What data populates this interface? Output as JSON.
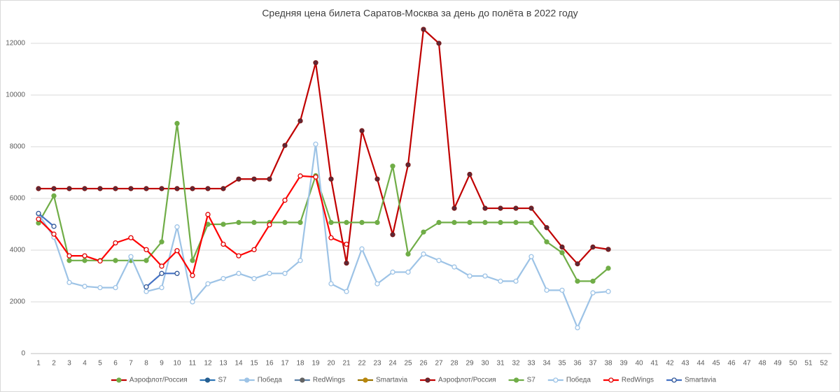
{
  "chart_data": {
    "type": "line",
    "title": "Средняя цена билета Саратов-Москва за день до полёта в 2022 году",
    "categories": [
      "1",
      "2",
      "3",
      "4",
      "5",
      "6",
      "7",
      "8",
      "9",
      "10",
      "11",
      "12",
      "13",
      "14",
      "15",
      "16",
      "17",
      "18",
      "19",
      "20",
      "21",
      "22",
      "23",
      "24",
      "25",
      "26",
      "27",
      "28",
      "29",
      "30",
      "31",
      "32",
      "33",
      "34",
      "35",
      "36",
      "37",
      "38",
      "39",
      "40",
      "41",
      "42",
      "43",
      "44",
      "45",
      "46",
      "47",
      "48",
      "49",
      "50",
      "51",
      "52"
    ],
    "ylim": [
      0,
      12540
    ],
    "yticks": [
      0,
      2000,
      4000,
      6000,
      8000,
      10000,
      12000
    ],
    "grid": true,
    "legend": "bottom",
    "series": [
      {
        "name": "Аэрофлот/Россия",
        "color": "#c00000",
        "marker_color": "#70ad47",
        "marker_fill": "#70ad47",
        "values": [
          null,
          null,
          null,
          null,
          null,
          null,
          null,
          null,
          null,
          null,
          null,
          null,
          null,
          null,
          null,
          null,
          null,
          null,
          null,
          null,
          null,
          null,
          null,
          null,
          null,
          null,
          null,
          null,
          null,
          null,
          null,
          null,
          null,
          null,
          null,
          null,
          null,
          null,
          null,
          null,
          null,
          null,
          null,
          null,
          null,
          null,
          null,
          null,
          null,
          null,
          null,
          null
        ]
      },
      {
        "name": "S7",
        "color": "#2e75b6",
        "marker_color": "#255e91",
        "marker_fill": "#255e91",
        "values": [
          null,
          null,
          null,
          null,
          null,
          null,
          null,
          null,
          null,
          null,
          null,
          null,
          null,
          null,
          null,
          null,
          null,
          null,
          null,
          null,
          null,
          null,
          null,
          null,
          null,
          null,
          null,
          null,
          null,
          null,
          null,
          null,
          null,
          null,
          null,
          null,
          null,
          null,
          null,
          null,
          null,
          null,
          null,
          null,
          null,
          null,
          null,
          null,
          null,
          null,
          null,
          null
        ]
      },
      {
        "name": "Победа",
        "color": "#9dc3e6",
        "marker_color": "#9dc3e6",
        "marker_fill": "#9dc3e6",
        "values": [
          null,
          null,
          null,
          null,
          null,
          null,
          null,
          null,
          null,
          null,
          null,
          null,
          null,
          null,
          null,
          null,
          null,
          null,
          null,
          null,
          null,
          null,
          null,
          null,
          null,
          null,
          null,
          null,
          null,
          null,
          null,
          null,
          null,
          null,
          null,
          null,
          null,
          null,
          null,
          null,
          null,
          null,
          null,
          null,
          null,
          null,
          null,
          null,
          null,
          null,
          null,
          null
        ]
      },
      {
        "name": "RedWings",
        "color": "#5b7fa6",
        "marker_color": "#636363",
        "marker_fill": "#636363",
        "values": [
          null,
          null,
          null,
          null,
          null,
          null,
          null,
          null,
          null,
          null,
          null,
          null,
          null,
          null,
          null,
          null,
          null,
          null,
          null,
          null,
          null,
          null,
          null,
          null,
          null,
          null,
          null,
          null,
          null,
          null,
          null,
          null,
          null,
          null,
          null,
          null,
          null,
          null,
          null,
          null,
          null,
          null,
          null,
          null,
          null,
          null,
          null,
          null,
          null,
          null,
          null,
          null
        ]
      },
      {
        "name": "Smartavia",
        "color": "#997300",
        "marker_color": "#b8860b",
        "marker_fill": "#b8860b",
        "values": [
          null,
          null,
          null,
          null,
          null,
          null,
          null,
          null,
          null,
          null,
          null,
          null,
          null,
          null,
          null,
          null,
          null,
          null,
          null,
          null,
          null,
          null,
          null,
          null,
          null,
          null,
          null,
          null,
          null,
          null,
          null,
          null,
          null,
          null,
          null,
          null,
          null,
          null,
          null,
          null,
          null,
          null,
          null,
          null,
          null,
          null,
          null,
          null,
          null,
          null,
          null,
          null
        ]
      },
      {
        "name": "Аэрофлот/Россия",
        "color": "#c00000",
        "marker_color": "#7b1a1a",
        "marker_fill": "#5a2a3a",
        "values": [
          6380,
          6380,
          6380,
          6380,
          6380,
          6380,
          6380,
          6380,
          6380,
          6380,
          6380,
          6380,
          6380,
          6750,
          6750,
          6750,
          8050,
          9000,
          11250,
          6750,
          3500,
          8620,
          6750,
          4600,
          7300,
          12540,
          12000,
          5620,
          6930,
          5620,
          5620,
          5620,
          5620,
          4870,
          4120,
          3470,
          4120,
          4030,
          null,
          null,
          null,
          null,
          null,
          null,
          null,
          null,
          null,
          null,
          null,
          null,
          null,
          null
        ]
      },
      {
        "name": "S7",
        "color": "#70ad47",
        "marker_color": "#70ad47",
        "marker_fill": "#70ad47",
        "values": [
          5050,
          6100,
          3600,
          3600,
          3600,
          3600,
          3600,
          3600,
          4320,
          8900,
          3600,
          5000,
          5000,
          5070,
          5070,
          5070,
          5070,
          5070,
          6880,
          5070,
          5070,
          5070,
          5070,
          7250,
          3850,
          4700,
          5070,
          5070,
          5070,
          5070,
          5070,
          5070,
          5070,
          4320,
          3900,
          2800,
          2800,
          3300,
          null,
          null,
          null,
          null,
          null,
          null,
          null,
          null,
          null,
          null,
          null,
          null,
          null,
          null
        ]
      },
      {
        "name": "Победа",
        "color": "#9dc3e6",
        "marker_color": "#9dc3e6",
        "marker_fill": "#ffffff",
        "values": [
          5400,
          4500,
          2750,
          2600,
          2550,
          2550,
          3750,
          2400,
          2550,
          4900,
          2000,
          2700,
          2900,
          3100,
          2900,
          3100,
          3100,
          3600,
          8100,
          2700,
          2400,
          4050,
          2700,
          3150,
          3150,
          3850,
          3600,
          3350,
          3000,
          3000,
          2800,
          2800,
          3750,
          2450,
          2450,
          1000,
          2350,
          2400,
          null,
          null,
          null,
          null,
          null,
          null,
          null,
          null,
          null,
          null,
          null,
          null,
          null,
          null
        ]
      },
      {
        "name": "RedWings",
        "color": "#ff0000",
        "marker_color": "#e00000",
        "marker_fill": "#ffffff",
        "values": [
          5200,
          4620,
          3780,
          3780,
          3580,
          4280,
          4480,
          4020,
          3380,
          3980,
          3020,
          5380,
          4230,
          3780,
          4020,
          4980,
          5930,
          6870,
          6830,
          4480,
          4230,
          null,
          null,
          null,
          null,
          null,
          null,
          null,
          null,
          null,
          null,
          null,
          null,
          null,
          null,
          null,
          null,
          null,
          null,
          null,
          null,
          null,
          null,
          null,
          null,
          null,
          null,
          null,
          null,
          null,
          null,
          null
        ]
      },
      {
        "name": "Smartavia",
        "color": "#4472c4",
        "marker_color": "#2f5597",
        "marker_fill": "#ffffff",
        "values": [
          5420,
          4920,
          null,
          null,
          null,
          null,
          null,
          2580,
          3100,
          3100,
          null,
          null,
          null,
          null,
          null,
          null,
          null,
          null,
          null,
          null,
          null,
          null,
          null,
          null,
          null,
          null,
          null,
          null,
          null,
          null,
          null,
          null,
          null,
          null,
          null,
          null,
          null,
          null,
          null,
          null,
          null,
          null,
          null,
          null,
          null,
          null,
          null,
          null,
          null,
          null,
          null,
          null
        ]
      }
    ]
  }
}
